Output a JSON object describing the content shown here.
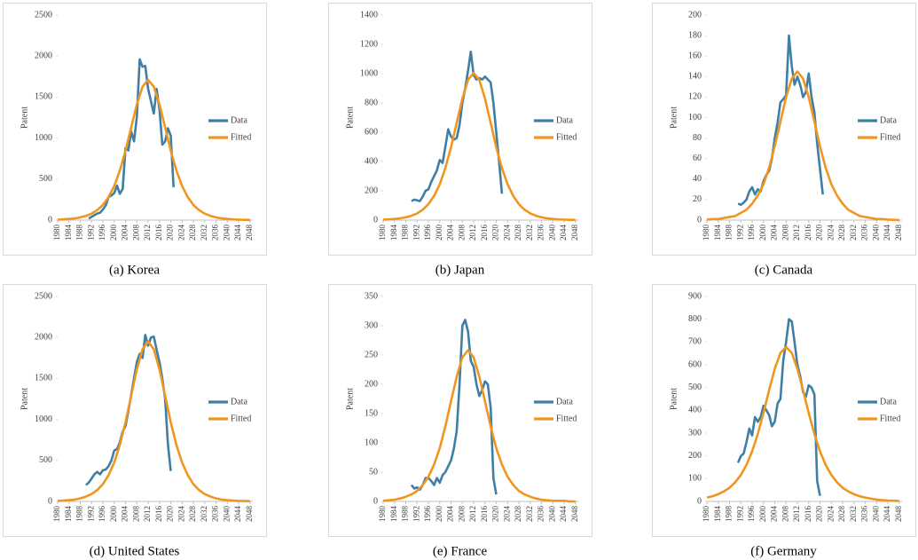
{
  "chart_data": [
    {
      "type": "line",
      "caption": "(a) Korea",
      "ylabel": "Patent",
      "legend": "right",
      "xlim": [
        1980,
        2049
      ],
      "xticks": [
        1980,
        1984,
        1988,
        1992,
        1996,
        2000,
        2004,
        2008,
        2012,
        2016,
        2020,
        2024,
        2028,
        2032,
        2036,
        2040,
        2044,
        2048
      ],
      "ylim": [
        0,
        2500
      ],
      "yticks": [
        0,
        500,
        1000,
        1500,
        2000,
        2500
      ],
      "series": [
        {
          "name": "Data",
          "color": "#3f7fa6",
          "x": [
            1991,
            1992,
            1993,
            1994,
            1995,
            1996,
            1997,
            1998,
            1999,
            2000,
            2001,
            2002,
            2003,
            2004,
            2005,
            2006,
            2007,
            2008,
            2009,
            2010,
            2011,
            2012,
            2013,
            2014,
            2015,
            2016,
            2017,
            2018,
            2019,
            2020,
            2021
          ],
          "values": [
            20,
            40,
            60,
            80,
            90,
            130,
            180,
            280,
            300,
            330,
            420,
            320,
            380,
            880,
            850,
            1080,
            960,
            1260,
            1960,
            1870,
            1880,
            1600,
            1450,
            1300,
            1600,
            1350,
            920,
            960,
            1120,
            1030,
            400
          ]
        },
        {
          "name": "Fitted",
          "color": "#f0961e",
          "x": [
            1980,
            1982,
            1984,
            1986,
            1988,
            1990,
            1992,
            1994,
            1996,
            1998,
            2000,
            2002,
            2004,
            2006,
            2008,
            2010,
            2012,
            2014,
            2016,
            2018,
            2020,
            2022,
            2024,
            2026,
            2028,
            2030,
            2032,
            2034,
            2036,
            2038,
            2040,
            2042,
            2044,
            2046,
            2048
          ],
          "values": [
            5,
            9,
            14,
            21,
            32,
            51,
            79,
            121,
            185,
            280,
            416,
            604,
            846,
            1130,
            1412,
            1628,
            1710,
            1628,
            1412,
            1130,
            846,
            604,
            416,
            280,
            185,
            121,
            79,
            51,
            32,
            21,
            14,
            9,
            5,
            3,
            2
          ]
        }
      ]
    },
    {
      "type": "line",
      "caption": "(b) Japan",
      "ylabel": "Patent",
      "legend": "right",
      "xlim": [
        1980,
        2049
      ],
      "xticks": [
        1980,
        1984,
        1988,
        1992,
        1996,
        2000,
        2004,
        2008,
        2012,
        2016,
        2020,
        2024,
        2028,
        2032,
        2036,
        2040,
        2044,
        2048
      ],
      "ylim": [
        0,
        1400
      ],
      "yticks": [
        0,
        200,
        400,
        600,
        800,
        1000,
        1200,
        1400
      ],
      "series": [
        {
          "name": "Data",
          "color": "#3f7fa6",
          "x": [
            1990,
            1991,
            1992,
            1993,
            1994,
            1995,
            1996,
            1997,
            1998,
            1999,
            2000,
            2001,
            2002,
            2003,
            2004,
            2005,
            2006,
            2007,
            2008,
            2009,
            2010,
            2011,
            2012,
            2013,
            2014,
            2015,
            2016,
            2017,
            2018,
            2019,
            2020,
            2021,
            2022
          ],
          "values": [
            130,
            140,
            135,
            130,
            160,
            200,
            210,
            260,
            300,
            340,
            410,
            390,
            500,
            620,
            570,
            550,
            560,
            650,
            800,
            900,
            1020,
            1150,
            990,
            960,
            970,
            960,
            980,
            960,
            940,
            800,
            600,
            400,
            180
          ]
        },
        {
          "name": "Fitted",
          "color": "#f0961e",
          "x": [
            1980,
            1982,
            1984,
            1986,
            1988,
            1990,
            1992,
            1994,
            1996,
            1998,
            2000,
            2002,
            2004,
            2006,
            2008,
            2010,
            2012,
            2014,
            2016,
            2018,
            2020,
            2022,
            2024,
            2026,
            2028,
            2030,
            2032,
            2034,
            2036,
            2038,
            2040,
            2042,
            2044,
            2046,
            2048
          ],
          "values": [
            3,
            5,
            8,
            12,
            19,
            30,
            46,
            71,
            109,
            165,
            244,
            355,
            497,
            664,
            830,
            957,
            1005,
            957,
            830,
            664,
            497,
            355,
            244,
            165,
            109,
            71,
            46,
            30,
            19,
            12,
            8,
            5,
            3,
            2,
            1
          ]
        }
      ]
    },
    {
      "type": "line",
      "caption": "(c) Canada",
      "ylabel": "Patent",
      "legend": "right",
      "xlim": [
        1980,
        2049
      ],
      "xticks": [
        1980,
        1984,
        1988,
        1992,
        1996,
        2000,
        2004,
        2008,
        2012,
        2016,
        2020,
        2024,
        2028,
        2032,
        2036,
        2040,
        2044,
        2048
      ],
      "ylim": [
        0,
        200
      ],
      "yticks": [
        0,
        20,
        40,
        60,
        80,
        100,
        120,
        140,
        160,
        180,
        200
      ],
      "series": [
        {
          "name": "Data",
          "color": "#3f7fa6",
          "x": [
            1991,
            1992,
            1993,
            1994,
            1995,
            1996,
            1997,
            1998,
            1999,
            2000,
            2001,
            2002,
            2003,
            2004,
            2005,
            2006,
            2007,
            2008,
            2009,
            2010,
            2011,
            2012,
            2013,
            2014,
            2015,
            2016,
            2017,
            2018,
            2019,
            2020,
            2021
          ],
          "values": [
            16,
            15,
            17,
            20,
            28,
            32,
            25,
            30,
            28,
            38,
            44,
            48,
            60,
            80,
            95,
            115,
            118,
            122,
            180,
            150,
            132,
            140,
            132,
            120,
            125,
            143,
            120,
            105,
            75,
            50,
            25
          ]
        },
        {
          "name": "Fitted",
          "color": "#f0961e",
          "x": [
            1980,
            1982,
            1984,
            1986,
            1988,
            1990,
            1992,
            1994,
            1996,
            1998,
            2000,
            2002,
            2004,
            2006,
            2008,
            2010,
            2012,
            2014,
            2016,
            2018,
            2020,
            2022,
            2024,
            2026,
            2028,
            2030,
            2032,
            2034,
            2036,
            2038,
            2040,
            2042,
            2044,
            2046,
            2048
          ],
          "values": [
            0.5,
            1,
            1,
            2,
            3,
            4,
            7,
            10,
            16,
            24,
            35,
            51,
            72,
            96,
            120,
            138,
            145,
            138,
            120,
            96,
            72,
            51,
            35,
            24,
            16,
            10,
            7,
            4,
            3,
            2,
            1,
            1,
            0.5,
            0.3,
            0.2
          ]
        }
      ]
    },
    {
      "type": "line",
      "caption": "(d) United States",
      "ylabel": "Patent",
      "legend": "right",
      "xlim": [
        1980,
        2049
      ],
      "xticks": [
        1980,
        1984,
        1988,
        1992,
        1996,
        2000,
        2004,
        2008,
        2012,
        2016,
        2020,
        2024,
        2028,
        2032,
        2036,
        2040,
        2044,
        2048
      ],
      "ylim": [
        0,
        2500
      ],
      "yticks": [
        0,
        500,
        1000,
        1500,
        2000,
        2500
      ],
      "series": [
        {
          "name": "Data",
          "color": "#3f7fa6",
          "x": [
            1990,
            1991,
            1992,
            1993,
            1994,
            1995,
            1996,
            1997,
            1998,
            1999,
            2000,
            2001,
            2002,
            2003,
            2004,
            2005,
            2006,
            2007,
            2008,
            2009,
            2010,
            2011,
            2012,
            2013,
            2014,
            2015,
            2016,
            2017,
            2018,
            2019,
            2020
          ],
          "values": [
            200,
            230,
            280,
            330,
            360,
            330,
            380,
            390,
            430,
            500,
            620,
            640,
            720,
            850,
            920,
            1100,
            1300,
            1500,
            1700,
            1800,
            1750,
            2030,
            1900,
            2000,
            2010,
            1850,
            1700,
            1500,
            1250,
            700,
            370
          ]
        },
        {
          "name": "Fitted",
          "color": "#f0961e",
          "x": [
            1980,
            1982,
            1984,
            1986,
            1988,
            1990,
            1992,
            1994,
            1996,
            1998,
            2000,
            2002,
            2004,
            2006,
            2008,
            2010,
            2012,
            2014,
            2016,
            2018,
            2020,
            2022,
            2024,
            2026,
            2028,
            2030,
            2032,
            2034,
            2036,
            2038,
            2040,
            2042,
            2044,
            2046,
            2048
          ],
          "values": [
            6,
            10,
            16,
            23,
            37,
            59,
            90,
            138,
            211,
            320,
            474,
            688,
            965,
            1289,
            1611,
            1856,
            1950,
            1856,
            1611,
            1289,
            965,
            688,
            474,
            320,
            211,
            138,
            90,
            59,
            37,
            23,
            16,
            10,
            6,
            4,
            3
          ]
        }
      ]
    },
    {
      "type": "line",
      "caption": "(e) France",
      "ylabel": "Patent",
      "legend": "right",
      "xlim": [
        1980,
        2049
      ],
      "xticks": [
        1980,
        1984,
        1988,
        1992,
        1996,
        2000,
        2004,
        2008,
        2012,
        2016,
        2020,
        2024,
        2028,
        2032,
        2036,
        2040,
        2044,
        2048
      ],
      "ylim": [
        0,
        350
      ],
      "yticks": [
        0,
        50,
        100,
        150,
        200,
        250,
        300,
        350
      ],
      "series": [
        {
          "name": "Data",
          "color": "#3f7fa6",
          "x": [
            1990,
            1991,
            1992,
            1993,
            1994,
            1995,
            1996,
            1997,
            1998,
            1999,
            2000,
            2001,
            2002,
            2003,
            2004,
            2005,
            2006,
            2007,
            2008,
            2009,
            2010,
            2011,
            2012,
            2013,
            2014,
            2015,
            2016,
            2017,
            2018,
            2019,
            2020
          ],
          "values": [
            28,
            22,
            24,
            20,
            28,
            40,
            40,
            35,
            28,
            40,
            32,
            45,
            50,
            60,
            70,
            90,
            120,
            200,
            300,
            310,
            290,
            240,
            230,
            200,
            180,
            190,
            205,
            200,
            160,
            40,
            12
          ]
        },
        {
          "name": "Fitted",
          "color": "#f0961e",
          "x": [
            1980,
            1982,
            1984,
            1986,
            1988,
            1990,
            1992,
            1994,
            1996,
            1998,
            2000,
            2002,
            2004,
            2006,
            2008,
            2010,
            2012,
            2014,
            2016,
            2018,
            2020,
            2022,
            2024,
            2026,
            2028,
            2030,
            2032,
            2034,
            2036,
            2038,
            2040,
            2042,
            2044,
            2046,
            2048
          ],
          "values": [
            1,
            2,
            3,
            5,
            8,
            12,
            18,
            28,
            42,
            63,
            91,
            128,
            171,
            213,
            246,
            258,
            246,
            213,
            171,
            128,
            91,
            63,
            42,
            28,
            18,
            12,
            8,
            5,
            3,
            2,
            1,
            1,
            1,
            0,
            0
          ]
        }
      ]
    },
    {
      "type": "line",
      "caption": "(f) Germany",
      "ylabel": "Patent",
      "legend": "right",
      "xlim": [
        1980,
        2049
      ],
      "xticks": [
        1980,
        1984,
        1988,
        1992,
        1996,
        2000,
        2004,
        2008,
        2012,
        2016,
        2020,
        2024,
        2028,
        2032,
        2036,
        2040,
        2044,
        2048
      ],
      "ylim": [
        0,
        900
      ],
      "yticks": [
        0,
        100,
        200,
        300,
        400,
        500,
        600,
        700,
        800,
        900
      ],
      "series": [
        {
          "name": "Data",
          "color": "#3f7fa6",
          "x": [
            1991,
            1992,
            1993,
            1994,
            1995,
            1996,
            1997,
            1998,
            1999,
            2000,
            2001,
            2002,
            2003,
            2004,
            2005,
            2006,
            2007,
            2008,
            2009,
            2010,
            2011,
            2012,
            2013,
            2014,
            2015,
            2016,
            2017,
            2018,
            2019,
            2020
          ],
          "values": [
            170,
            200,
            210,
            260,
            320,
            290,
            370,
            350,
            370,
            420,
            400,
            380,
            330,
            350,
            430,
            450,
            620,
            700,
            800,
            790,
            700,
            600,
            550,
            480,
            460,
            510,
            500,
            470,
            90,
            25
          ]
        },
        {
          "name": "Fitted",
          "color": "#f0961e",
          "x": [
            1980,
            1982,
            1984,
            1986,
            1988,
            1990,
            1992,
            1994,
            1996,
            1998,
            2000,
            2002,
            2004,
            2006,
            2008,
            2010,
            2012,
            2014,
            2016,
            2018,
            2020,
            2022,
            2024,
            2026,
            2028,
            2030,
            2032,
            2034,
            2036,
            2038,
            2040,
            2042,
            2044,
            2046,
            2048
          ],
          "values": [
            17,
            23,
            32,
            44,
            60,
            84,
            116,
            160,
            220,
            296,
            388,
            488,
            582,
            652,
            678,
            652,
            582,
            488,
            388,
            296,
            220,
            160,
            116,
            84,
            60,
            44,
            32,
            23,
            17,
            12,
            8,
            6,
            4,
            3,
            2
          ]
        }
      ]
    }
  ]
}
